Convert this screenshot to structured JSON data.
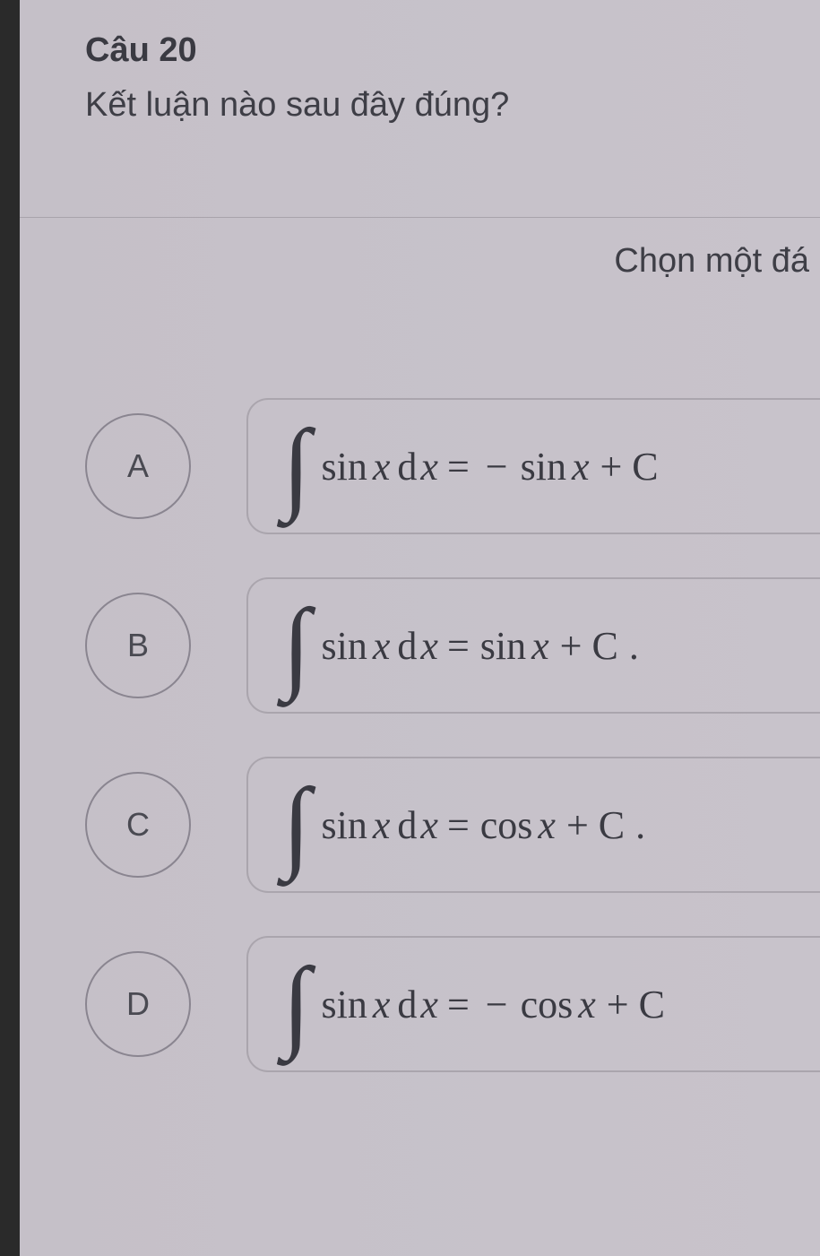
{
  "question": {
    "number": "Câu 20",
    "text": "Kết luận nào sau đây đúng?",
    "instruction": "Chọn một đá"
  },
  "options": [
    {
      "letter": "A",
      "lhs_func": "sin",
      "rhs_sign": "−",
      "rhs_func": "sin",
      "tail": "+ C",
      "period": ""
    },
    {
      "letter": "B",
      "lhs_func": "sin",
      "rhs_sign": "",
      "rhs_func": "sin",
      "tail": "+ C",
      "period": "."
    },
    {
      "letter": "C",
      "lhs_func": "sin",
      "rhs_sign": "",
      "rhs_func": "cos",
      "tail": "+ C",
      "period": "."
    },
    {
      "letter": "D",
      "lhs_func": "sin",
      "rhs_sign": "−",
      "rhs_func": "cos",
      "tail": "+ C",
      "period": ""
    }
  ],
  "styling": {
    "background_color": "#c8c3cb",
    "left_bar_color": "#2a2a2a",
    "text_color": "#3a3a42",
    "border_color": "#aaa5ad",
    "circle_border_color": "#8a8590",
    "question_fontsize": 38,
    "math_fontsize": 44,
    "integral_fontsize": 115,
    "option_circle_diameter": 118,
    "option_border_radius": 24
  }
}
